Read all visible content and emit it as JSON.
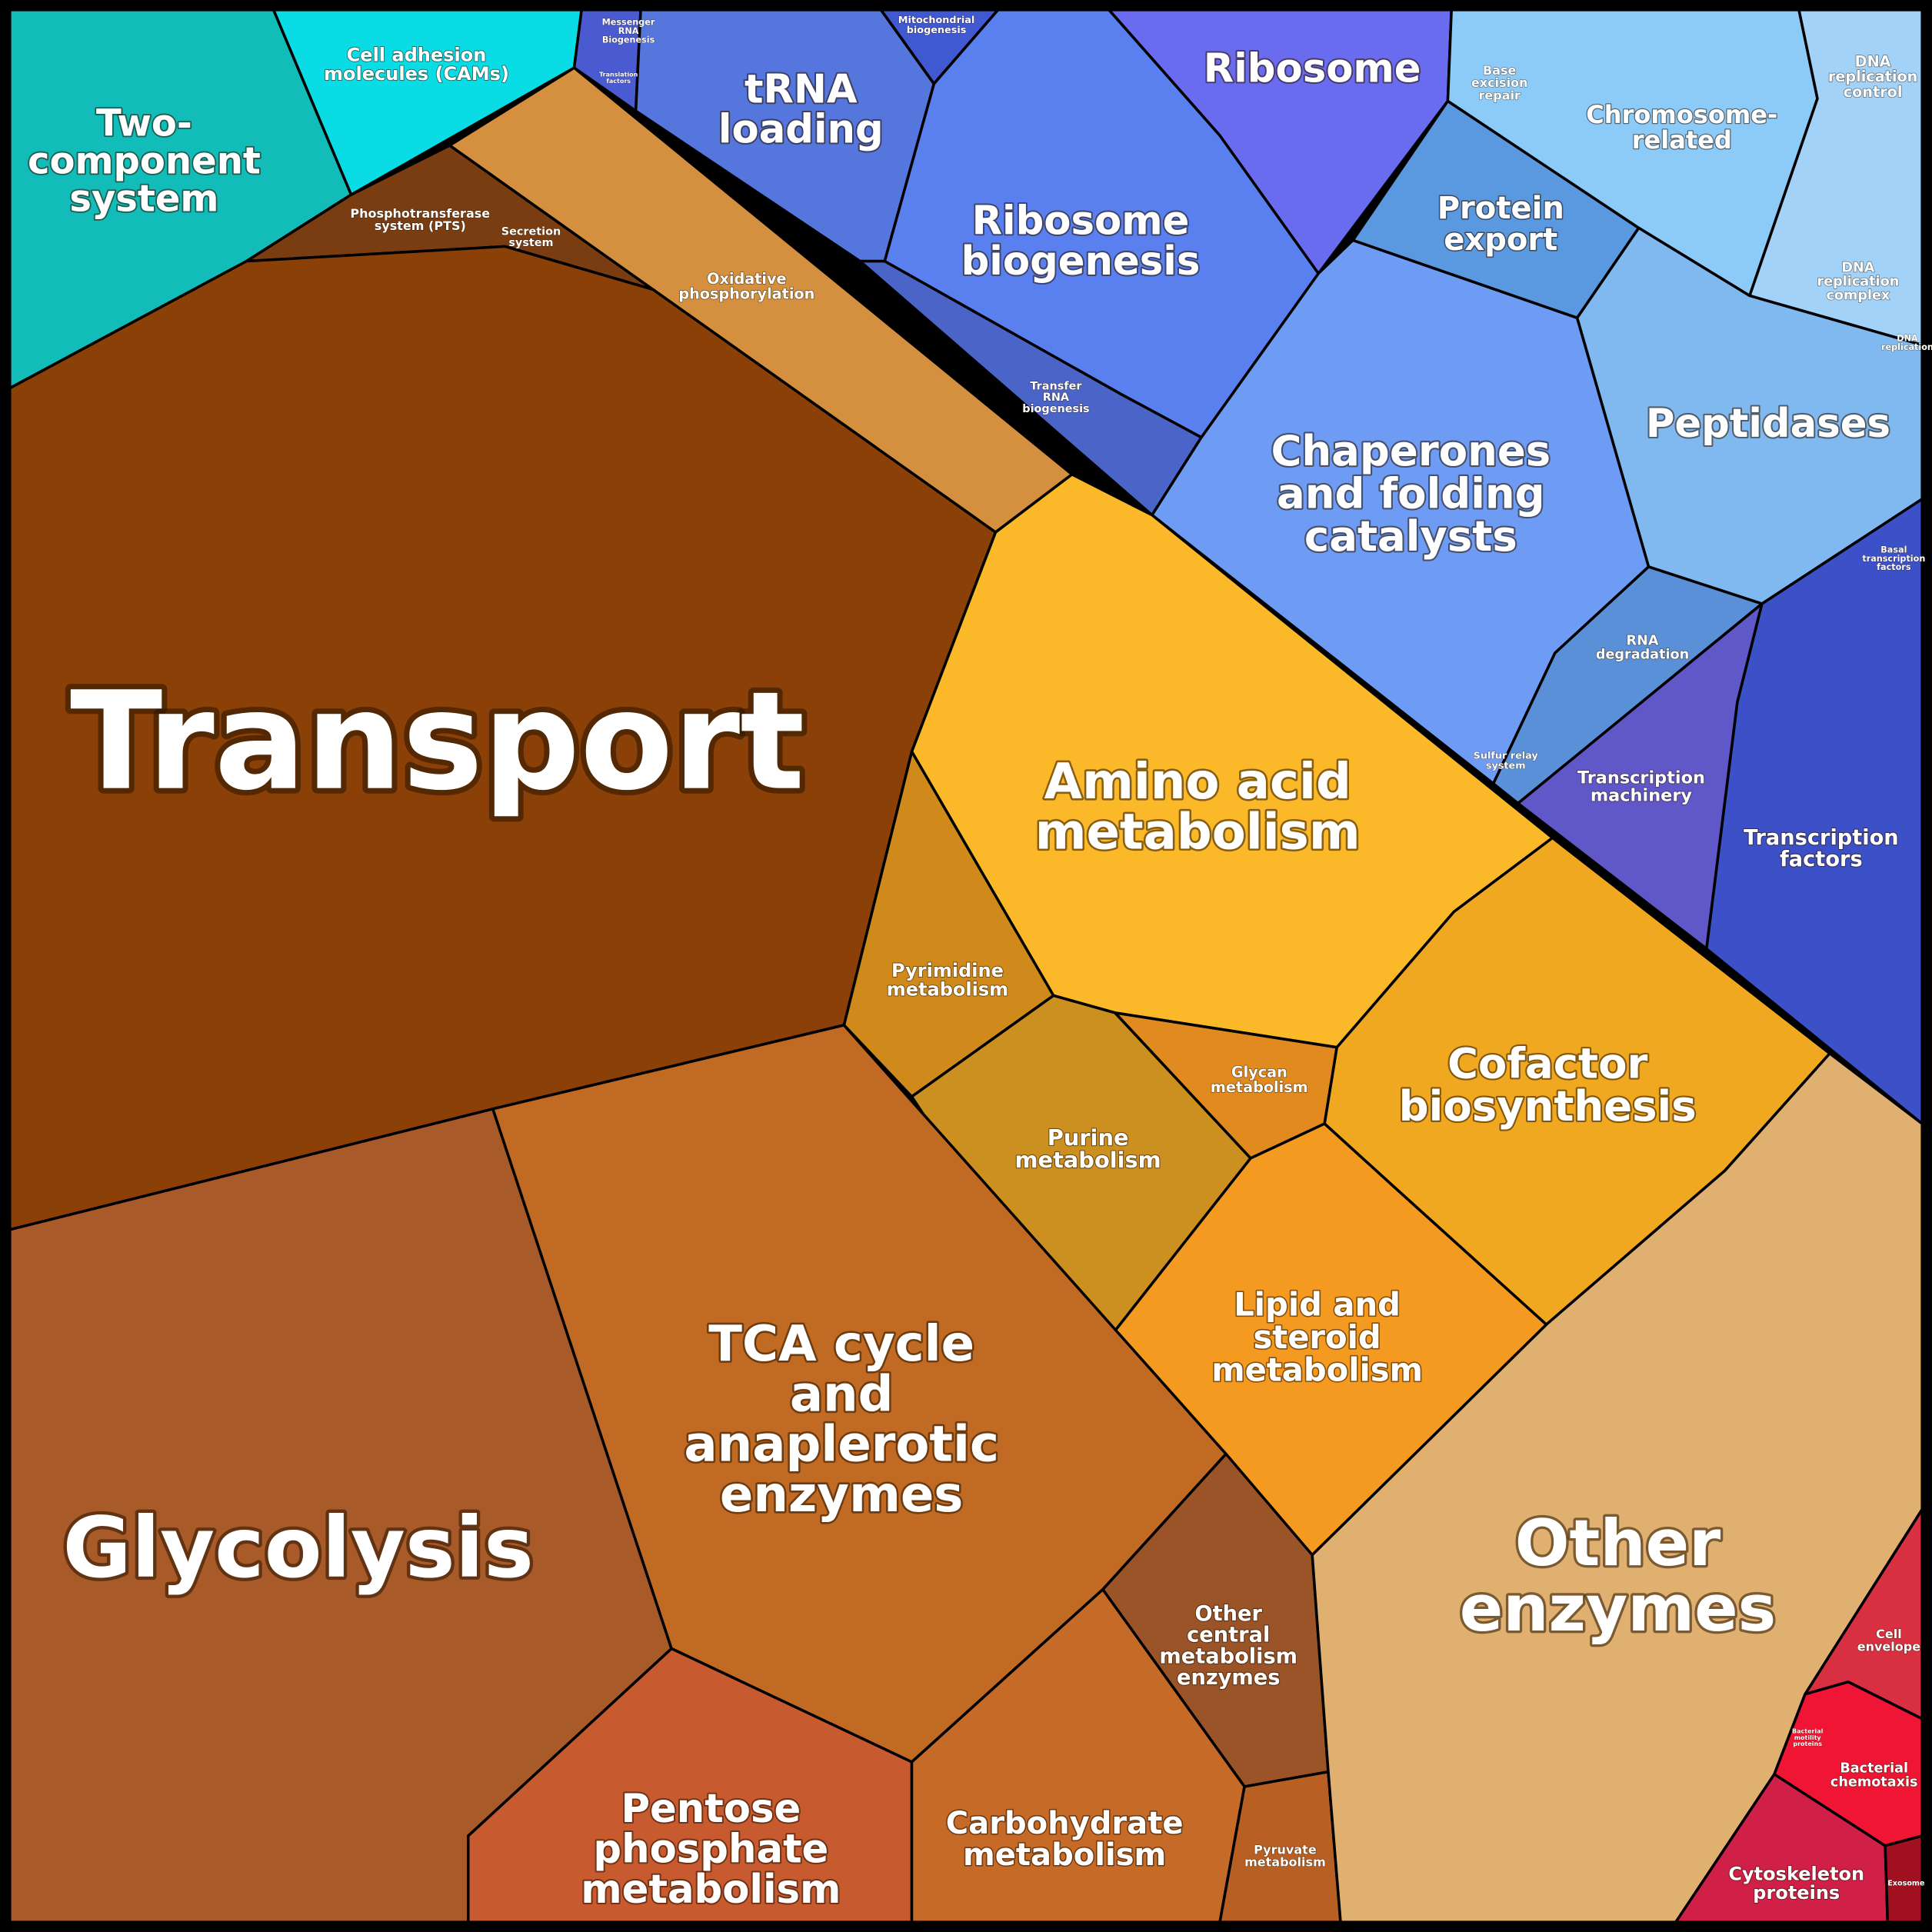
{
  "regions": [
    {
      "lines": [
        "Two-",
        "component",
        "system"
      ]
    },
    {
      "lines": [
        "Cell adhesion",
        "molecules (CAMs)"
      ]
    },
    {
      "lines": [
        "Messenger",
        "RNA",
        "Biogenesis"
      ]
    },
    {
      "lines": [
        "tRNA",
        "loading"
      ]
    },
    {
      "lines": [
        "Mitochondrial",
        "biogenesis"
      ]
    },
    {
      "lines": [
        "Ribosome"
      ]
    },
    {
      "lines": [
        "Ribosome",
        "biogenesis"
      ]
    },
    {
      "lines": [
        "Transfer",
        "RNA",
        "biogenesis"
      ]
    },
    {
      "lines": [
        "Protein",
        "export"
      ]
    },
    {
      "lines": [
        "Chromosome-",
        "related"
      ]
    },
    {
      "lines": [
        "DNA",
        "replication",
        "control"
      ]
    },
    {
      "lines": [
        "Peptidases"
      ]
    },
    {
      "lines": [
        "Chaperones",
        "and folding",
        "catalysts"
      ]
    },
    {
      "lines": [
        "RNA",
        "degradation"
      ]
    },
    {
      "lines": [
        "Transcription",
        "machinery"
      ]
    },
    {
      "lines": [
        "Transcription",
        "factors"
      ]
    },
    {
      "lines": [
        "Phosphotransferase",
        "system (PTS)"
      ]
    },
    {
      "lines": [
        "Oxidative",
        "phosphorylation"
      ]
    },
    {
      "lines": [
        "Transport"
      ]
    },
    {
      "lines": [
        "Amino acid",
        "metabolism"
      ]
    },
    {
      "lines": [
        "Pyrimidine",
        "metabolism"
      ]
    },
    {
      "lines": [
        "Purine",
        "metabolism"
      ]
    },
    {
      "lines": [
        "Glycan",
        "metabolism"
      ]
    },
    {
      "lines": [
        "Cofactor",
        "biosynthesis"
      ]
    },
    {
      "lines": [
        "Lipid and",
        "steroid",
        "metabolism"
      ]
    },
    {
      "lines": [
        "Glycolysis"
      ]
    },
    {
      "lines": [
        "TCA cycle",
        "and",
        "anaplerotic",
        "enzymes"
      ]
    },
    {
      "lines": [
        "Other",
        "central",
        "metabolism",
        "enzymes"
      ]
    },
    {
      "lines": [
        "Pentose",
        "phosphate",
        "metabolism"
      ]
    },
    {
      "lines": [
        "Carbohydrate",
        "metabolism"
      ]
    },
    {
      "lines": [
        "Pyruvate",
        "metabolism"
      ]
    },
    {
      "lines": [
        "Other",
        "enzymes"
      ]
    },
    {
      "lines": [
        "Cell",
        "envelope"
      ]
    },
    {
      "lines": [
        "Bacterial",
        "chemotaxis"
      ]
    },
    {
      "lines": [
        "Cytoskeleton",
        "proteins"
      ]
    },
    {
      "lines": [
        "Exosome"
      ]
    },
    {
      "lines": [
        "DNA",
        "replication",
        "complex"
      ]
    },
    {
      "lines": [
        "DNA",
        "replication"
      ]
    },
    {
      "lines": [
        "Base",
        "excision",
        "repair"
      ]
    },
    {
      "lines": [
        "Sulfur relay",
        "system"
      ]
    },
    {
      "lines": [
        "Basal",
        "transcription",
        "factors"
      ]
    },
    {
      "lines": [
        "Translation",
        "factors"
      ]
    },
    {
      "lines": [
        "Secretion",
        "system"
      ]
    },
    {
      "lines": [
        "Bacterial",
        "motility",
        "proteins"
      ]
    }
  ]
}
